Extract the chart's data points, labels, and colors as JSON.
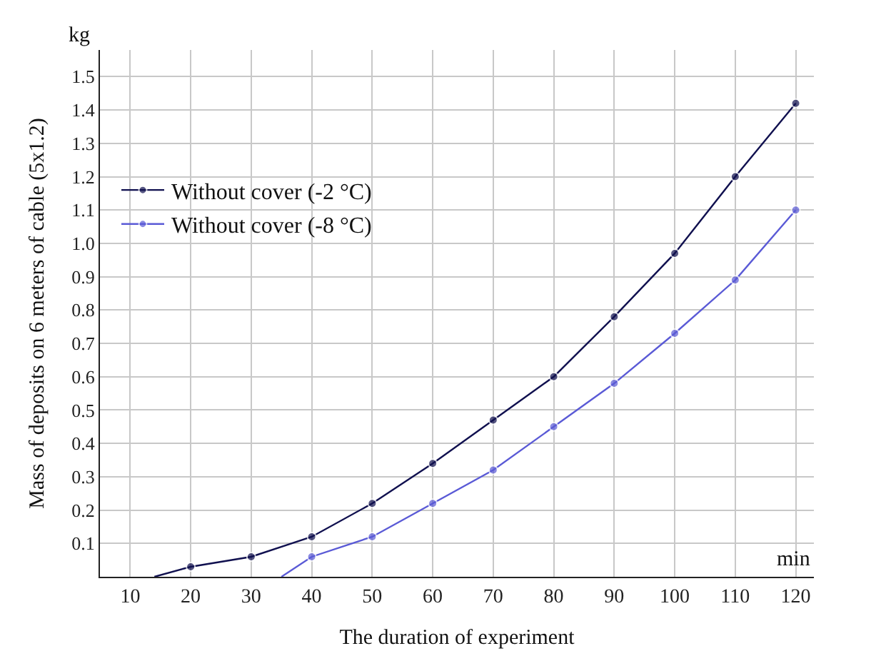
{
  "chart_data": {
    "type": "line",
    "xlabel": "The duration of experiment",
    "ylabel": "Mass of deposits on 6 meters of cable (5x1.2)",
    "annotations": [
      "kg",
      "min"
    ],
    "series": [
      {
        "name": "Without cover (-2 °C)",
        "color": "#10104f",
        "x": [
          14,
          20,
          30,
          40,
          50,
          60,
          70,
          80,
          90,
          100,
          110,
          120
        ],
        "values": [
          0,
          0.03,
          0.06,
          0.12,
          0.22,
          0.34,
          0.47,
          0.6,
          0.78,
          0.97,
          1.2,
          1.42
        ]
      },
      {
        "name": "Without cover (-8 °C)",
        "color": "#5a5ad6",
        "x": [
          35,
          40,
          50,
          60,
          70,
          80,
          90,
          100,
          110,
          120
        ],
        "values": [
          0,
          0.06,
          0.12,
          0.22,
          0.32,
          0.45,
          0.58,
          0.73,
          0.89,
          1.1
        ]
      }
    ],
    "xlim": [
      5,
      123
    ],
    "ylim": [
      0,
      1.58
    ],
    "xticks": [
      10,
      20,
      30,
      40,
      50,
      60,
      70,
      80,
      90,
      100,
      110,
      120
    ],
    "yticks": [
      {
        "value": 0.1,
        "label": "0.1"
      },
      {
        "value": 0.2,
        "label": "0.2"
      },
      {
        "value": 0.3,
        "label": "0.3"
      },
      {
        "value": 0.4,
        "label": "0.4"
      },
      {
        "value": 0.5,
        "label": "0.5"
      },
      {
        "value": 0.6,
        "label": "0.6"
      },
      {
        "value": 0.7,
        "label": "0.7"
      },
      {
        "value": 0.8,
        "label": "0.8"
      },
      {
        "value": 0.9,
        "label": "0.9"
      },
      {
        "value": 1.0,
        "label": "1.0"
      },
      {
        "value": 1.1,
        "label": "1.1"
      },
      {
        "value": 1.2,
        "label": "1.2"
      },
      {
        "value": 1.3,
        "label": "1.3"
      },
      {
        "value": 1.4,
        "label": "1.4"
      },
      {
        "value": 1.5,
        "label": "1.5"
      }
    ],
    "grid": true,
    "legend": "top left",
    "marker": "circle",
    "line_style": "solid"
  }
}
